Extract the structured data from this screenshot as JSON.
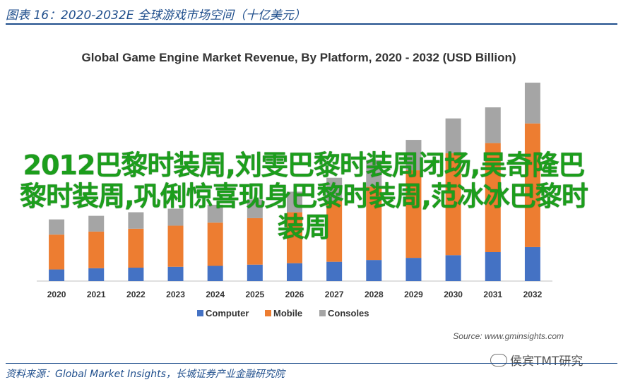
{
  "figure": {
    "caption": "图表 16：2020-2032E 全球游戏市场空间（十亿美元）",
    "source": "资料来源：Global Market Insights，长城证券产业金融研究院",
    "watermark": "侯宾TMT研究",
    "watermark_icon": "wechat-icon",
    "overlay_text": "2012巴黎时装周,刘雯巴黎时装周闭场,吴奇隆巴黎时装周,巩俐惊喜现身巴黎时装周,范冰冰巴黎时装周",
    "overlay_color": "#1c9e1c"
  },
  "chart_data": {
    "type": "bar",
    "stacked": true,
    "title": "Global Game Engine Market Revenue, By Platform, 2020 - 2032 (USD Billion)",
    "categories": [
      "2020",
      "2021",
      "2022",
      "2023",
      "2024",
      "2025",
      "2026",
      "2027",
      "2028",
      "2029",
      "2030",
      "2031",
      "2032"
    ],
    "series": [
      {
        "name": "Computer",
        "color": "#4472c4",
        "values": [
          0.65,
          0.72,
          0.75,
          0.8,
          0.85,
          0.92,
          1.0,
          1.08,
          1.18,
          1.3,
          1.45,
          1.62,
          1.9
        ]
      },
      {
        "name": "Mobile",
        "color": "#ed7d31",
        "values": [
          1.95,
          2.05,
          2.18,
          2.3,
          2.42,
          2.6,
          2.85,
          3.4,
          4.1,
          4.9,
          5.7,
          6.1,
          6.92
        ]
      },
      {
        "name": "Consoles",
        "color": "#a5a5a5",
        "values": [
          0.85,
          0.88,
          0.92,
          0.95,
          1.0,
          1.05,
          1.15,
          1.3,
          1.5,
          1.7,
          1.95,
          2.0,
          2.28
        ]
      }
    ],
    "ylim": [
      0,
      11.3
    ],
    "grid": false,
    "legend": "bottom",
    "annotation": "Source: www.gminsights.com"
  }
}
